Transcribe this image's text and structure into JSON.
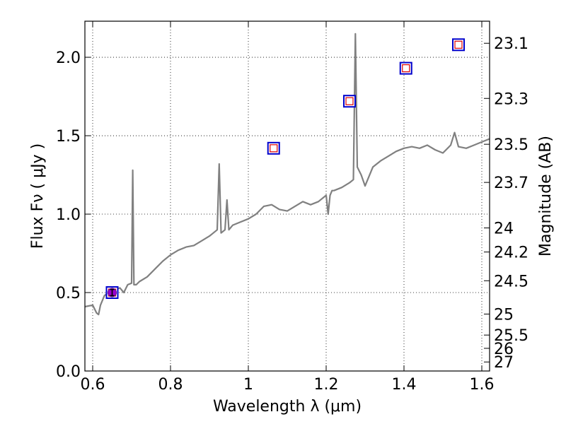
{
  "chart_data": {
    "type": "line",
    "xlabel": "Wavelength  λ (μm)",
    "ylabel": "Flux  Fν  ( μJy )",
    "ylabel_right": "Magnitude (AB)",
    "xlim": [
      0.58,
      1.62
    ],
    "ylim": [
      0.0,
      2.23
    ],
    "grid": true,
    "x_ticks": [
      {
        "value": 0.6,
        "label": "0.6"
      },
      {
        "value": 0.8,
        "label": "0.8"
      },
      {
        "value": 1.0,
        "label": "1"
      },
      {
        "value": 1.2,
        "label": "1.2"
      },
      {
        "value": 1.4,
        "label": "1.4"
      },
      {
        "value": 1.6,
        "label": "1.6"
      }
    ],
    "y_ticks": [
      {
        "value": 0.0,
        "label": "0.0"
      },
      {
        "value": 0.5,
        "label": "0.5"
      },
      {
        "value": 1.0,
        "label": "1.0"
      },
      {
        "value": 1.5,
        "label": "1.5"
      },
      {
        "value": 2.0,
        "label": "2.0"
      }
    ],
    "mag_ticks": [
      {
        "mag": 23.1,
        "label": "23.1"
      },
      {
        "mag": 23.3,
        "label": "23.3"
      },
      {
        "mag": 23.5,
        "label": "23.5"
      },
      {
        "mag": 23.7,
        "label": "23.7"
      },
      {
        "mag": 24.0,
        "label": "24"
      },
      {
        "mag": 24.2,
        "label": "24.2"
      },
      {
        "mag": 24.5,
        "label": "24.5"
      },
      {
        "mag": 25.0,
        "label": "25"
      },
      {
        "mag": 25.5,
        "label": "25.5"
      },
      {
        "mag": 26.0,
        "label": "26"
      },
      {
        "mag": 27.0,
        "label": "27"
      }
    ],
    "series": [
      {
        "kind": "spectrum",
        "color": "#808080",
        "x": [
          0.58,
          0.6,
          0.61,
          0.615,
          0.62,
          0.63,
          0.64,
          0.65,
          0.66,
          0.67,
          0.68,
          0.69,
          0.7,
          0.703,
          0.706,
          0.709,
          0.712,
          0.72,
          0.74,
          0.76,
          0.78,
          0.8,
          0.82,
          0.84,
          0.86,
          0.88,
          0.9,
          0.91,
          0.92,
          0.925,
          0.93,
          0.94,
          0.945,
          0.95,
          0.96,
          0.98,
          1.0,
          1.02,
          1.04,
          1.06,
          1.08,
          1.1,
          1.12,
          1.14,
          1.16,
          1.18,
          1.2,
          1.205,
          1.21,
          1.215,
          1.22,
          1.24,
          1.26,
          1.27,
          1.275,
          1.28,
          1.29,
          1.3,
          1.32,
          1.34,
          1.36,
          1.38,
          1.4,
          1.42,
          1.44,
          1.46,
          1.48,
          1.5,
          1.52,
          1.53,
          1.54,
          1.56,
          1.58,
          1.6,
          1.62
        ],
        "y": [
          0.41,
          0.42,
          0.37,
          0.36,
          0.42,
          0.48,
          0.5,
          0.5,
          0.52,
          0.53,
          0.5,
          0.55,
          0.56,
          1.28,
          0.55,
          0.55,
          0.55,
          0.57,
          0.6,
          0.65,
          0.7,
          0.74,
          0.77,
          0.79,
          0.8,
          0.83,
          0.86,
          0.88,
          0.9,
          1.32,
          0.88,
          0.9,
          1.09,
          0.9,
          0.93,
          0.95,
          0.97,
          1.0,
          1.05,
          1.06,
          1.03,
          1.02,
          1.05,
          1.08,
          1.06,
          1.08,
          1.12,
          1.0,
          1.12,
          1.15,
          1.15,
          1.17,
          1.2,
          1.22,
          2.15,
          1.3,
          1.25,
          1.18,
          1.3,
          1.34,
          1.37,
          1.4,
          1.42,
          1.43,
          1.42,
          1.44,
          1.41,
          1.39,
          1.44,
          1.52,
          1.43,
          1.42,
          1.44,
          1.46,
          1.48
        ]
      },
      {
        "kind": "photometry",
        "edge_color": "#0000cc",
        "inner_color": "#dd0000",
        "x": [
          0.65,
          1.065,
          1.26,
          1.405,
          1.54
        ],
        "y": [
          0.5,
          1.42,
          1.72,
          1.93,
          2.08
        ]
      },
      {
        "kind": "detection",
        "fill_color": "#9900cc",
        "x": [
          0.65
        ],
        "y": [
          0.5
        ],
        "yerr": [
          0.02
        ]
      }
    ]
  }
}
